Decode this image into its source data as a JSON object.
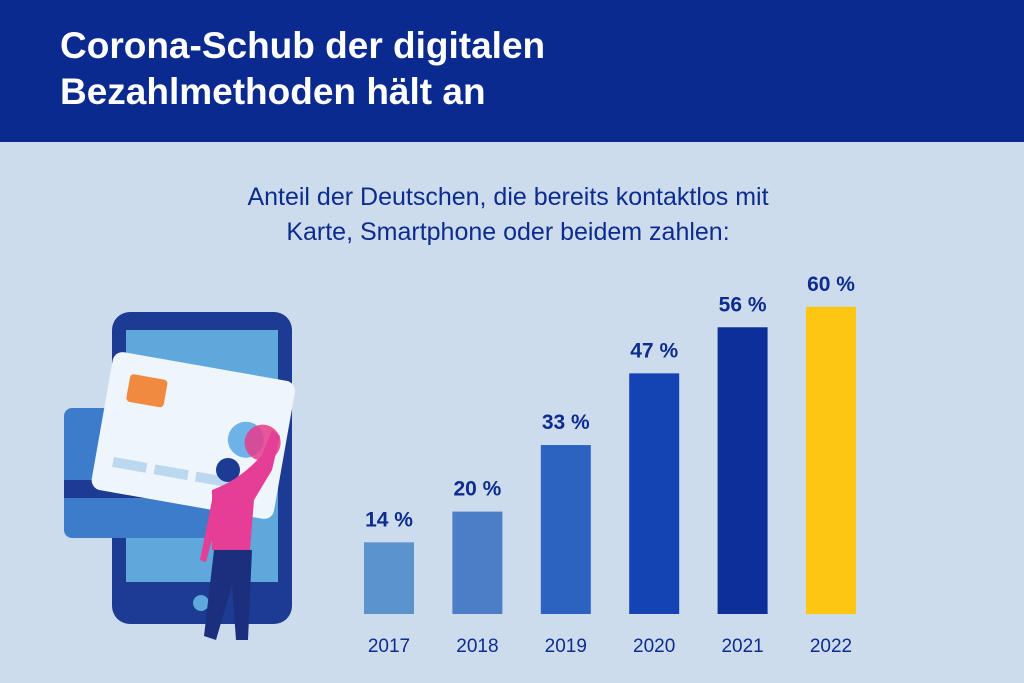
{
  "chart_data": {
    "type": "bar",
    "title": [
      "Corona-Schub der digitalen",
      "Bezahlmethoden hält an"
    ],
    "subtitle": [
      "Anteil der Deutschen, die bereits kontaktlos mit",
      "Karte, Smartphone oder beidem zahlen:"
    ],
    "categories": [
      "2017",
      "2018",
      "2019",
      "2020",
      "2021",
      "2022"
    ],
    "values": [
      14,
      20,
      33,
      47,
      56,
      60
    ],
    "value_labels": [
      "14 %",
      "20 %",
      "33 %",
      "47 %",
      "56 %",
      "60 %"
    ],
    "colors": [
      "#5b93cf",
      "#4a7fc8",
      "#2d63c0",
      "#1443b4",
      "#0c2f98",
      "#fcc613"
    ]
  }
}
